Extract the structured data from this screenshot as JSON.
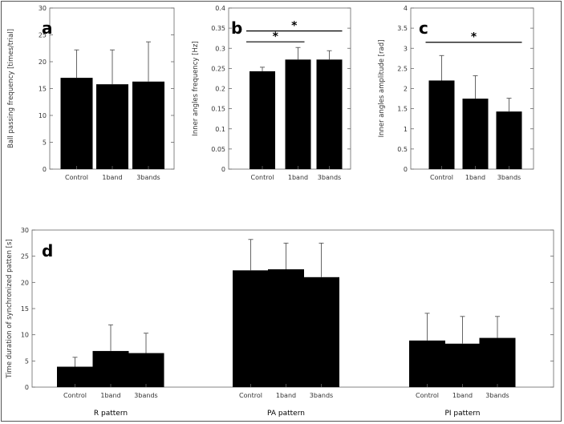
{
  "chart_data": [
    {
      "panel": "a",
      "type": "bar",
      "categories": [
        "Control",
        "1band",
        "3bands"
      ],
      "values": [
        17.0,
        15.8,
        16.3
      ],
      "errors": [
        5.2,
        6.4,
        7.4
      ],
      "ylabel": "Ball passing frequency [times/trial]",
      "ylim": [
        0,
        30
      ],
      "yticks": [
        0,
        5,
        10,
        15,
        20,
        25,
        30
      ],
      "significance": []
    },
    {
      "panel": "b",
      "type": "bar",
      "categories": [
        "Control",
        "1band",
        "3bands"
      ],
      "values": [
        0.243,
        0.272,
        0.272
      ],
      "errors": [
        0.01,
        0.03,
        0.022
      ],
      "ylabel": "Inner angles frequency [Hz]",
      "ylim": [
        0,
        0.4
      ],
      "yticks": [
        0,
        0.05,
        0.1,
        0.15,
        0.2,
        0.25,
        0.3,
        0.35,
        0.4
      ],
      "significance": [
        {
          "from": 0,
          "to": 1,
          "label": "*",
          "y": 0.316
        },
        {
          "from": 0,
          "to": 2,
          "label": "*",
          "y": 0.343
        }
      ]
    },
    {
      "panel": "c",
      "type": "bar",
      "categories": [
        "Control",
        "1band",
        "3bands"
      ],
      "values": [
        2.2,
        1.75,
        1.43
      ],
      "errors": [
        0.62,
        0.57,
        0.33
      ],
      "ylabel": "Inner angles amplitude [rad]",
      "ylim": [
        0,
        4
      ],
      "yticks": [
        0,
        0.5,
        1,
        1.5,
        2,
        2.5,
        3,
        3.5,
        4
      ],
      "significance": [
        {
          "from": 0,
          "to": 2,
          "label": "*",
          "y": 3.15
        }
      ]
    },
    {
      "panel": "d",
      "type": "bar",
      "ylabel": "Time duration of synchronized patten [s]",
      "ylim": [
        0,
        30
      ],
      "yticks": [
        0,
        5,
        10,
        15,
        20,
        25,
        30
      ],
      "groups": [
        {
          "name": "R pattern",
          "categories": [
            "Control",
            "1band",
            "3bands"
          ],
          "values": [
            3.9,
            6.9,
            6.5
          ],
          "errors": [
            1.8,
            5.0,
            3.8
          ]
        },
        {
          "name": "PA pattern",
          "categories": [
            "Control",
            "1band",
            "3bands"
          ],
          "values": [
            22.3,
            22.5,
            21.0
          ],
          "errors": [
            5.9,
            5.0,
            6.5
          ]
        },
        {
          "name": "PI pattern",
          "categories": [
            "Control",
            "1band",
            "3bands"
          ],
          "values": [
            8.9,
            8.3,
            9.4
          ],
          "errors": [
            5.2,
            5.2,
            4.1
          ]
        }
      ],
      "significance": []
    }
  ],
  "colors": {
    "bar": "#000000",
    "axis": "#666666",
    "error": "#555555"
  }
}
